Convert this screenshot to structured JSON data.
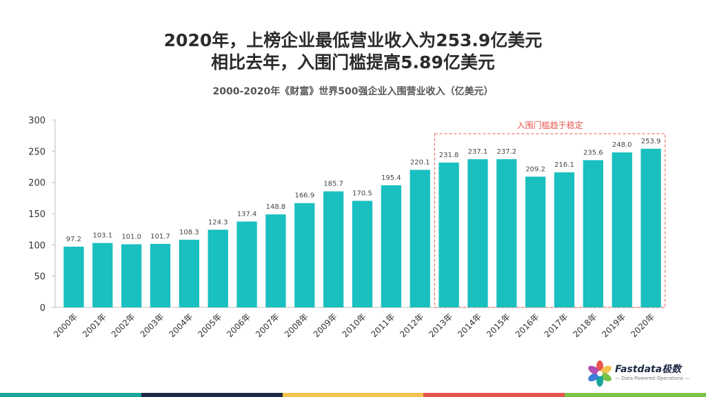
{
  "headline": {
    "line1": "2020年，上榜企业最低营业收入为253.9亿美元",
    "line2": "相比去年，入围门槛提高5.89亿美元"
  },
  "chart_data": {
    "type": "bar",
    "title": "2000-2020年《财富》世界500强企业入围营业收入（亿美元）",
    "categories": [
      "2000年",
      "2001年",
      "2002年",
      "2003年",
      "2004年",
      "2005年",
      "2006年",
      "2007年",
      "2008年",
      "2009年",
      "2010年",
      "2011年",
      "2012年",
      "2013年",
      "2014年",
      "2015年",
      "2016年",
      "2017年",
      "2018年",
      "2019年",
      "2020年"
    ],
    "values": [
      97.2,
      103.1,
      101.0,
      101.7,
      108.3,
      124.3,
      137.4,
      148.8,
      166.9,
      185.7,
      170.5,
      195.4,
      220.1,
      231.8,
      237.1,
      237.2,
      209.2,
      216.1,
      235.6,
      248.0,
      253.9
    ],
    "value_labels": [
      "97.2",
      "103.1",
      "101.0",
      "101.7",
      "108.3",
      "124.3",
      "137.4",
      "148.8",
      "166.9",
      "185.7",
      "170.5",
      "195.4",
      "220.1",
      "231.8",
      "237.1",
      "237.2",
      "209.2",
      "216.1",
      "235.6",
      "248.0",
      "253.9"
    ],
    "ylim": [
      0,
      300
    ],
    "yticks": [
      "0",
      "50",
      "100",
      "150",
      "200",
      "250",
      "300"
    ],
    "grid": false,
    "bar_color": "#1ABFBF",
    "annotation": {
      "text": "入围门槛趋于稳定",
      "color": "#E8544E",
      "range": [
        "2013年",
        "2020年"
      ]
    }
  },
  "logo": {
    "title": "Fastdata极数",
    "subtitle": "— Data-Powered Operations —"
  },
  "bottom_bar_colors": [
    "#1AA59A",
    "#1F2A44",
    "#F2C14E",
    "#E8544E",
    "#7BC24A"
  ]
}
